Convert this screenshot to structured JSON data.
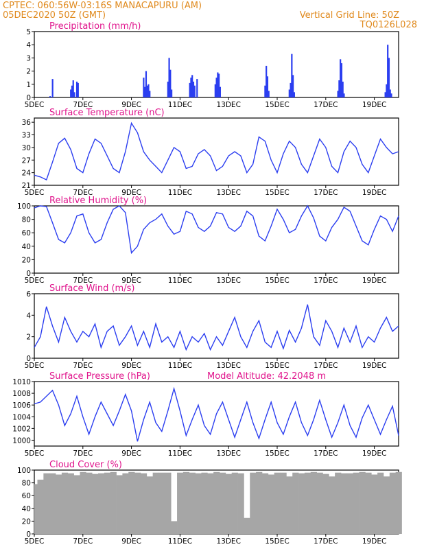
{
  "header": {
    "station": "CPTEC:   060:56W-03:16S   MANACAPURU (AM)",
    "run": "05DEC2020 50Z (GMT)",
    "grid_line": "Vertical Grid Line: 50Z",
    "code": "TQ0126L028"
  },
  "colors": {
    "series": "#2b3ef0",
    "cloud": "#a6a6a6",
    "title": "#e0148c",
    "header": "#e08a1e"
  },
  "chart_data": [
    {
      "id": "precip",
      "type": "bar",
      "title": "Precipitation (mm/h)",
      "ylim": [
        0,
        5
      ],
      "yticks": [
        0,
        1,
        2,
        3,
        4,
        5
      ],
      "x_tick_labels": [
        "5DEC",
        "7DEC",
        "9DEC",
        "11DEC",
        "13DEC",
        "15DEC",
        "17DEC",
        "19DEC"
      ],
      "x": [
        0.65,
        0.75,
        1.5,
        1.55,
        1.6,
        1.65,
        1.75,
        1.8,
        4.5,
        4.55,
        4.6,
        4.65,
        4.7,
        4.75,
        5.5,
        5.55,
        5.6,
        5.65,
        6.4,
        6.45,
        6.5,
        6.55,
        6.6,
        6.7,
        7.45,
        7.5,
        7.55,
        7.6,
        7.65,
        9.5,
        9.55,
        9.6,
        9.65,
        10.5,
        10.55,
        10.6,
        10.65,
        10.7,
        12.5,
        12.55,
        12.6,
        12.65,
        12.7,
        12.75,
        14.45,
        14.5,
        14.55,
        14.6,
        14.65,
        14.7
      ],
      "values": [
        0.1,
        1.4,
        0.6,
        0.9,
        1.3,
        0.4,
        1.2,
        1.1,
        1.5,
        0.8,
        2.0,
        0.9,
        1.0,
        0.5,
        1.2,
        3.0,
        2.1,
        0.6,
        1.1,
        1.5,
        1.7,
        1.2,
        0.9,
        1.4,
        1.0,
        1.5,
        1.9,
        1.8,
        0.8,
        0.9,
        2.4,
        1.6,
        0.5,
        0.6,
        1.1,
        3.3,
        1.7,
        0.4,
        0.5,
        1.3,
        2.9,
        2.6,
        1.2,
        0.3,
        0.4,
        1.0,
        4.0,
        3.0,
        0.6,
        0.3
      ]
    },
    {
      "id": "temperature",
      "type": "line",
      "title": "Surface Temperature (nC)",
      "ylim": [
        21,
        37
      ],
      "yticks": [
        21,
        24,
        27,
        30,
        33,
        36
      ],
      "x_tick_labels": [
        "5DEC",
        "7DEC",
        "9DEC",
        "11DEC",
        "13DEC",
        "15DEC",
        "17DEC",
        "19DEC"
      ],
      "x": [
        0,
        0.25,
        0.5,
        0.75,
        1.0,
        1.25,
        1.5,
        1.75,
        2.0,
        2.25,
        2.5,
        2.75,
        3.0,
        3.25,
        3.5,
        3.75,
        4.0,
        4.25,
        4.5,
        4.75,
        5.0,
        5.25,
        5.5,
        5.75,
        6.0,
        6.25,
        6.5,
        6.75,
        7.0,
        7.25,
        7.5,
        7.75,
        8.0,
        8.25,
        8.5,
        8.75,
        9.0,
        9.25,
        9.5,
        9.75,
        10.0,
        10.25,
        10.5,
        10.75,
        11.0,
        11.25,
        11.5,
        11.75,
        12.0,
        12.25,
        12.5,
        12.75,
        13.0,
        13.25,
        13.5,
        13.75,
        14.0,
        14.25,
        14.5,
        14.75,
        15.0
      ],
      "values": [
        23.4,
        23.0,
        22.3,
        26.5,
        31.0,
        32.2,
        29.5,
        25.0,
        24.0,
        28.5,
        32.0,
        31.0,
        28.0,
        25.0,
        24.0,
        29.0,
        35.8,
        33.5,
        29.0,
        27.0,
        25.5,
        24.0,
        27.0,
        30.0,
        29.0,
        25.0,
        25.5,
        28.5,
        29.5,
        28.0,
        24.5,
        25.5,
        28.0,
        29.0,
        28.0,
        24.0,
        26.0,
        32.5,
        31.5,
        27.0,
        24.0,
        28.5,
        31.5,
        30.0,
        26.0,
        24.0,
        28.0,
        32.0,
        30.0,
        25.5,
        24.0,
        29.0,
        31.5,
        30.0,
        26.0,
        24.0,
        28.0,
        32.0,
        30.0,
        28.5,
        29.0
      ],
      "xlim": [
        0,
        15
      ]
    },
    {
      "id": "humidity",
      "type": "line",
      "title": "Relative Humidity (%)",
      "ylim": [
        0,
        100
      ],
      "yticks": [
        0,
        20,
        40,
        60,
        80,
        100
      ],
      "x_tick_labels": [
        "5DEC",
        "7DEC",
        "9DEC",
        "11DEC",
        "13DEC",
        "15DEC",
        "17DEC",
        "19DEC"
      ],
      "x": [
        0,
        0.25,
        0.5,
        0.75,
        1.0,
        1.25,
        1.5,
        1.75,
        2.0,
        2.25,
        2.5,
        2.75,
        3.0,
        3.25,
        3.5,
        3.75,
        4.0,
        4.25,
        4.5,
        4.75,
        5.0,
        5.25,
        5.5,
        5.75,
        6.0,
        6.25,
        6.5,
        6.75,
        7.0,
        7.25,
        7.5,
        7.75,
        8.0,
        8.25,
        8.5,
        8.75,
        9.0,
        9.25,
        9.5,
        9.75,
        10.0,
        10.25,
        10.5,
        10.75,
        11.0,
        11.25,
        11.5,
        11.75,
        12.0,
        12.25,
        12.5,
        12.75,
        13.0,
        13.25,
        13.5,
        13.75,
        14.0,
        14.25,
        14.5,
        14.75,
        15.0
      ],
      "values": [
        97,
        100,
        99,
        75,
        50,
        45,
        60,
        85,
        88,
        60,
        45,
        50,
        75,
        95,
        100,
        90,
        30,
        40,
        65,
        75,
        80,
        88,
        70,
        58,
        62,
        92,
        88,
        68,
        62,
        70,
        90,
        88,
        68,
        62,
        70,
        92,
        85,
        55,
        48,
        70,
        95,
        80,
        60,
        65,
        85,
        100,
        82,
        55,
        48,
        68,
        80,
        98,
        92,
        70,
        48,
        42,
        65,
        85,
        80,
        62,
        85
      ],
      "xlim": [
        0,
        15
      ]
    },
    {
      "id": "wind",
      "type": "line",
      "title": "Surface Wind (m/s)",
      "ylim": [
        0,
        6
      ],
      "yticks": [
        0,
        2,
        4,
        6
      ],
      "x_tick_labels": [
        "5DEC",
        "7DEC",
        "9DEC",
        "11DEC",
        "13DEC",
        "15DEC",
        "17DEC",
        "19DEC"
      ],
      "x": [
        0,
        0.25,
        0.5,
        0.75,
        1.0,
        1.25,
        1.5,
        1.75,
        2.0,
        2.25,
        2.5,
        2.75,
        3.0,
        3.25,
        3.5,
        3.75,
        4.0,
        4.25,
        4.5,
        4.75,
        5.0,
        5.25,
        5.5,
        5.75,
        6.0,
        6.25,
        6.5,
        6.75,
        7.0,
        7.25,
        7.5,
        7.75,
        8.0,
        8.25,
        8.5,
        8.75,
        9.0,
        9.25,
        9.5,
        9.75,
        10.0,
        10.25,
        10.5,
        10.75,
        11.0,
        11.25,
        11.5,
        11.75,
        12.0,
        12.25,
        12.5,
        12.75,
        13.0,
        13.25,
        13.5,
        13.75,
        14.0,
        14.25,
        14.5,
        14.75,
        15.0
      ],
      "values": [
        1.0,
        2.0,
        4.8,
        3.0,
        1.5,
        3.8,
        2.5,
        1.5,
        2.5,
        2.0,
        3.2,
        1.0,
        2.5,
        3.0,
        1.2,
        2.0,
        3.0,
        1.2,
        2.5,
        1.0,
        3.2,
        1.5,
        2.0,
        1.0,
        2.5,
        0.8,
        2.0,
        1.5,
        2.3,
        0.8,
        2.0,
        1.2,
        2.5,
        3.8,
        2.0,
        1.0,
        2.5,
        3.5,
        1.5,
        1.0,
        2.5,
        0.9,
        2.6,
        1.5,
        2.8,
        5.0,
        2.0,
        1.2,
        3.5,
        2.5,
        1.0,
        2.8,
        1.5,
        3.0,
        1.0,
        2.0,
        1.5,
        2.8,
        3.8,
        2.5,
        3.0
      ],
      "xlim": [
        0,
        15
      ]
    },
    {
      "id": "pressure",
      "type": "line",
      "title": "Surface Pressure (hPa)",
      "annotation": "Model Altitude: 42.2048 m",
      "ylim": [
        999,
        1010
      ],
      "yticks": [
        1000,
        1002,
        1004,
        1006,
        1008,
        1010
      ],
      "x_tick_labels": [
        "5DEC",
        "7DEC",
        "9DEC",
        "11DEC",
        "13DEC",
        "15DEC",
        "17DEC",
        "19DEC"
      ],
      "x": [
        0,
        0.25,
        0.5,
        0.75,
        1.0,
        1.25,
        1.5,
        1.75,
        2.0,
        2.25,
        2.5,
        2.75,
        3.0,
        3.25,
        3.5,
        3.75,
        4.0,
        4.25,
        4.5,
        4.75,
        5.0,
        5.25,
        5.5,
        5.75,
        6.0,
        6.25,
        6.5,
        6.75,
        7.0,
        7.25,
        7.5,
        7.75,
        8.0,
        8.25,
        8.5,
        8.75,
        9.0,
        9.25,
        9.5,
        9.75,
        10.0,
        10.25,
        10.5,
        10.75,
        11.0,
        11.25,
        11.5,
        11.75,
        12.0,
        12.25,
        12.5,
        12.75,
        13.0,
        13.25,
        13.5,
        13.75,
        14.0,
        14.25,
        14.5,
        14.75,
        15.0
      ],
      "values": [
        1006.2,
        1006.5,
        1007.5,
        1008.5,
        1006.0,
        1002.5,
        1004.5,
        1007.5,
        1004.0,
        1001.0,
        1004.0,
        1006.5,
        1004.5,
        1002.5,
        1005.0,
        1007.8,
        1005.0,
        999.8,
        1003.5,
        1006.5,
        1003.0,
        1001.5,
        1005.0,
        1008.8,
        1005.0,
        1000.8,
        1003.5,
        1006.0,
        1002.5,
        1001.0,
        1004.5,
        1006.5,
        1003.5,
        1000.5,
        1003.5,
        1006.5,
        1003.0,
        1000.3,
        1003.5,
        1006.5,
        1003.0,
        1001.0,
        1004.0,
        1006.5,
        1003.0,
        1000.8,
        1003.5,
        1006.8,
        1003.5,
        1000.5,
        1003.0,
        1006.0,
        1002.5,
        1000.5,
        1003.8,
        1006.0,
        1003.5,
        1001.0,
        1003.5,
        1005.8,
        1000.8
      ],
      "xlim": [
        0,
        15
      ]
    },
    {
      "id": "cloud",
      "type": "area",
      "title": "Cloud Cover (%)",
      "ylim": [
        0,
        100
      ],
      "yticks": [
        0,
        20,
        40,
        60,
        80,
        100
      ],
      "x_tick_labels": [
        "5DEC",
        "7DEC",
        "9DEC",
        "11DEC",
        "13DEC",
        "15DEC",
        "17DEC",
        "19DEC"
      ],
      "x": [
        0,
        0.25,
        0.5,
        0.75,
        1.0,
        1.25,
        1.5,
        1.75,
        2.0,
        2.25,
        2.5,
        2.75,
        3.0,
        3.25,
        3.5,
        3.75,
        4.0,
        4.25,
        4.5,
        4.75,
        5.0,
        5.25,
        5.5,
        5.75,
        6.0,
        6.25,
        6.5,
        6.75,
        7.0,
        7.25,
        7.5,
        7.75,
        8.0,
        8.25,
        8.5,
        8.75,
        9.0,
        9.25,
        9.5,
        9.75,
        10.0,
        10.25,
        10.5,
        10.75,
        11.0,
        11.25,
        11.5,
        11.75,
        12.0,
        12.25,
        12.5,
        12.75,
        13.0,
        13.25,
        13.5,
        13.75,
        14.0,
        14.25,
        14.5,
        14.75,
        15.0
      ],
      "values": [
        78,
        85,
        95,
        95,
        93,
        96,
        95,
        92,
        97,
        96,
        94,
        95,
        96,
        97,
        92,
        95,
        97,
        96,
        95,
        90,
        96,
        96,
        96,
        20,
        96,
        97,
        96,
        95,
        96,
        95,
        97,
        96,
        94,
        96,
        95,
        25,
        96,
        97,
        95,
        93,
        96,
        96,
        90,
        96,
        95,
        96,
        97,
        96,
        94,
        90,
        96,
        95,
        95,
        96,
        97,
        96,
        93,
        96,
        90,
        96,
        97
      ],
      "xlim": [
        0,
        15
      ]
    }
  ]
}
